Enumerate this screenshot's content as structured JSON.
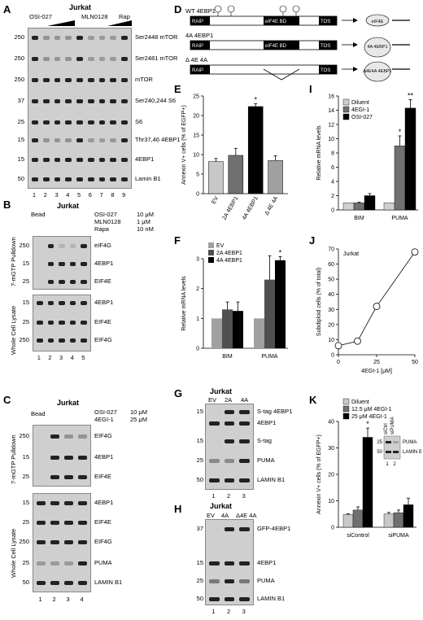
{
  "panels": {
    "A": "A",
    "B": "B",
    "C": "C",
    "D": "D",
    "E": "E",
    "F": "F",
    "G": "G",
    "H": "H",
    "I": "I",
    "J": "J",
    "K": "K"
  },
  "A": {
    "cell": "Jurkat",
    "treat1": "OSI-027",
    "treat2": "MLN0128",
    "treat3": "Rap",
    "rows": [
      {
        "mw": "250",
        "label": "Ser2448 mTOR"
      },
      {
        "mw": "250",
        "label": "Ser2481 mTOR"
      },
      {
        "mw": "250",
        "label": "mTOR"
      },
      {
        "mw": "37",
        "label": "Ser240,244 S6"
      },
      {
        "mw": "25",
        "label": "S6"
      },
      {
        "mw": "15",
        "label": "Thr37,46 4EBP1"
      },
      {
        "mw": "15",
        "label": "4EBP1"
      },
      {
        "mw": "50",
        "label": "Lamin B1"
      }
    ],
    "lanes": [
      "1",
      "2",
      "3",
      "4",
      "5",
      "6",
      "7",
      "8",
      "9"
    ]
  },
  "B": {
    "cell": "Jurkat",
    "bead": "Bead",
    "conds": [
      {
        "name": "OSI-027",
        "dose": "10 μM"
      },
      {
        "name": "MLN0128",
        "dose": "1 μM"
      },
      {
        "name": "Rapa",
        "dose": "10 nM"
      }
    ],
    "section1": "7-mGTP Pulldown",
    "section2": "Whole Cell Lysate",
    "rows1": [
      {
        "mw": "250",
        "label": "eIF4G"
      },
      {
        "mw": "15",
        "label": "4EBP1"
      },
      {
        "mw": "25",
        "label": "EIF4E"
      }
    ],
    "rows2": [
      {
        "mw": "15",
        "label": "4EBP1"
      },
      {
        "mw": "25",
        "label": "EIF4E"
      },
      {
        "mw": "250",
        "label": "EIF4G"
      }
    ],
    "lanes": [
      "1",
      "2",
      "3",
      "4",
      "5"
    ]
  },
  "C": {
    "cell": "Jurkat",
    "bead": "Bead",
    "conds": [
      {
        "name": "OSI-027",
        "dose": "10 μM"
      },
      {
        "name": "4EGI-1",
        "dose": "25 μM"
      }
    ],
    "section1": "7-mGTP Pulldown",
    "section2": "Whole Cell Lysate",
    "rows1": [
      {
        "mw": "250",
        "label": "EIF4G"
      },
      {
        "mw": "15",
        "label": "4EBP1"
      },
      {
        "mw": "25",
        "label": "EIF4E"
      }
    ],
    "rows2": [
      {
        "mw": "15",
        "label": "4EBP1"
      },
      {
        "mw": "25",
        "label": "EIF4E"
      },
      {
        "mw": "250",
        "label": "EIF4G"
      },
      {
        "mw": "25",
        "label": "PUMA"
      },
      {
        "mw": "50",
        "label": "LAMIN B1"
      }
    ],
    "lanes": [
      "1",
      "2",
      "3",
      "4"
    ]
  },
  "D": {
    "constructs": [
      {
        "name": "WT 4EBP1",
        "partner": "eIF4E"
      },
      {
        "name": "4A 4EBP1",
        "partner": "4A 4EBP1"
      },
      {
        "name": "Δ 4E 4A",
        "partner": "Δ4E4A 4EBP1"
      }
    ],
    "domains": [
      "RAIP",
      "eIF4E BD",
      "TOS"
    ]
  },
  "G": {
    "cell": "Jurkat",
    "lanes_top": [
      "EV",
      "2A",
      "4A"
    ],
    "rows": [
      {
        "mw": "15",
        "label": "S-tag 4EBP1"
      },
      {
        "mw": "",
        "label": "4EBP1"
      },
      {
        "mw": "15",
        "label": "S-tag"
      },
      {
        "mw": "25",
        "label": "PUMA"
      },
      {
        "mw": "50",
        "label": "LAMIN B1"
      }
    ],
    "lanes": [
      "1",
      "2",
      "3"
    ]
  },
  "H": {
    "cell": "Jurkat",
    "lanes_top": [
      "EV",
      "4A",
      "Δ4E 4A"
    ],
    "rows": [
      {
        "mw": "37",
        "label": "GFP-4EBP1"
      },
      {
        "mw": "15",
        "label": "4EBP1"
      },
      {
        "mw": "25",
        "label": "PUMA"
      },
      {
        "mw": "50",
        "label": "LAMIN B1"
      }
    ],
    "lanes": [
      "1",
      "2",
      "3"
    ]
  },
  "chart_data": [
    {
      "panel": "E",
      "type": "bar",
      "ylabel": "Annexin V+ cells (% of EGFP+)",
      "ylim": [
        0,
        25
      ],
      "yticks": [
        0,
        5,
        10,
        15,
        20,
        25
      ],
      "categories": [
        "EV",
        "2A 4EBP1",
        "4A 4EBP1",
        "Δ 4E 4A"
      ],
      "values": [
        8.2,
        9.8,
        22.3,
        8.5
      ],
      "errors": [
        0.8,
        1.8,
        0.7,
        1.2
      ],
      "colors": [
        "#c8c8c8",
        "#707070",
        "#000000",
        "#a0a0a0"
      ],
      "sig": [
        "",
        "",
        "*",
        ""
      ]
    },
    {
      "panel": "F",
      "type": "bar",
      "ylabel": "Relative mRNA levels",
      "ylim": [
        0,
        3
      ],
      "yticks": [
        0,
        1,
        2,
        3
      ],
      "groups": [
        "BIM",
        "PUMA"
      ],
      "series": [
        {
          "name": "EV",
          "values": [
            1.0,
            1.0
          ],
          "errors": [
            0,
            0
          ],
          "color": "#a0a0a0"
        },
        {
          "name": "2A 4EBP1",
          "values": [
            1.3,
            2.3
          ],
          "errors": [
            0.25,
            0.8
          ],
          "color": "#505050"
        },
        {
          "name": "4A 4EBP1",
          "values": [
            1.25,
            2.95
          ],
          "errors": [
            0.3,
            0.12
          ],
          "color": "#000000"
        }
      ],
      "sig": [
        "",
        "*"
      ]
    },
    {
      "panel": "I",
      "type": "bar",
      "ylabel": "Relative mRNA levels",
      "ylim": [
        0,
        16
      ],
      "yticks": [
        0,
        2,
        4,
        6,
        8,
        10,
        12,
        14,
        16
      ],
      "groups": [
        "BIM",
        "PUMA"
      ],
      "series": [
        {
          "name": "Diluent",
          "values": [
            1.0,
            1.0
          ],
          "errors": [
            0,
            0
          ],
          "color": "#d0d0d0"
        },
        {
          "name": "4EGI-1",
          "values": [
            1.0,
            9.0
          ],
          "errors": [
            0.1,
            1.4
          ],
          "color": "#707070"
        },
        {
          "name": "OSI-027",
          "values": [
            2.0,
            14.3
          ],
          "errors": [
            0.3,
            1.2
          ],
          "color": "#000000"
        }
      ],
      "sig": [
        "",
        "*",
        "**"
      ]
    },
    {
      "panel": "J",
      "type": "line",
      "title": "Jurkat",
      "xlabel": "4EGI-1 [μM]",
      "ylabel": "Subdiploid cells (% of total)",
      "xlim": [
        0,
        50
      ],
      "ylim": [
        0,
        70
      ],
      "xticks": [
        0,
        25,
        50
      ],
      "yticks": [
        0,
        10,
        20,
        30,
        40,
        50,
        60,
        70
      ],
      "x": [
        0,
        12.5,
        25,
        50
      ],
      "y": [
        6,
        9,
        32,
        68
      ]
    },
    {
      "panel": "K",
      "type": "bar",
      "ylabel": "Annexin V+ cells (% of EGFP+)",
      "ylim": [
        0,
        40
      ],
      "yticks": [
        0,
        10,
        20,
        30,
        40
      ],
      "groups": [
        "siControl",
        "siPUMA"
      ],
      "series": [
        {
          "name": "Diluent",
          "values": [
            4.8,
            5.0
          ],
          "errors": [
            0.3,
            0.6
          ],
          "color": "#c8c8c8"
        },
        {
          "name": "12.5 μM 4EGI-1",
          "values": [
            6.5,
            5.5
          ],
          "errors": [
            1.2,
            1.0
          ],
          "color": "#707070"
        },
        {
          "name": "25 μM 4EGI-1",
          "values": [
            34.0,
            8.5
          ],
          "errors": [
            3.5,
            2.5
          ],
          "color": "#000000"
        }
      ],
      "sig": [
        "*",
        ""
      ],
      "inset": {
        "lanes": [
          "siCtrl",
          "siPUMA"
        ],
        "rows": [
          {
            "mw": "25",
            "label": "PUMA"
          },
          {
            "mw": "50",
            "label": "LAMIN B1"
          }
        ],
        "lane_nums": [
          "1",
          "2"
        ]
      }
    }
  ]
}
